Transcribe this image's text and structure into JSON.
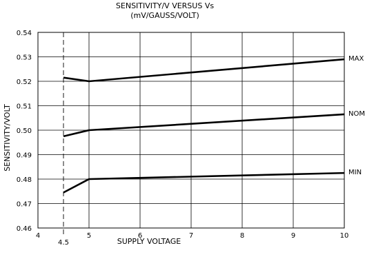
{
  "chart_data": {
    "type": "line",
    "title": "SENSITIVITY/V VERSUS Vs",
    "subtitle": "(mV/GAUSS/VOLT)",
    "xlabel": "SUPPLY VOLTAGE",
    "ylabel": "SENSITIVITY/VOLT",
    "xlim": [
      4,
      10
    ],
    "ylim": [
      0.46,
      0.54
    ],
    "x_ticks": [
      4,
      5,
      6,
      7,
      8,
      9,
      10
    ],
    "x_tick_labels": [
      "4",
      "5",
      "6",
      "7",
      "8",
      "9",
      "10"
    ],
    "y_ticks": [
      0.46,
      0.47,
      0.48,
      0.49,
      0.5,
      0.51,
      0.52,
      0.53,
      0.54
    ],
    "y_tick_labels": [
      "0.46",
      "0.47",
      "0.48",
      "0.49",
      "0.50",
      "0.51",
      "0.52",
      "0.53",
      "0.54"
    ],
    "marker_x": 4.5,
    "marker_label": "4.5",
    "grid": true,
    "series": [
      {
        "name": "MAX",
        "x": [
          4.5,
          5,
          10
        ],
        "y": [
          0.5215,
          0.52,
          0.529
        ]
      },
      {
        "name": "NOM",
        "x": [
          4.5,
          5,
          10
        ],
        "y": [
          0.4975,
          0.5,
          0.5065
        ]
      },
      {
        "name": "MIN",
        "x": [
          4.5,
          5,
          10
        ],
        "y": [
          0.4745,
          0.48,
          0.4825
        ]
      }
    ]
  }
}
